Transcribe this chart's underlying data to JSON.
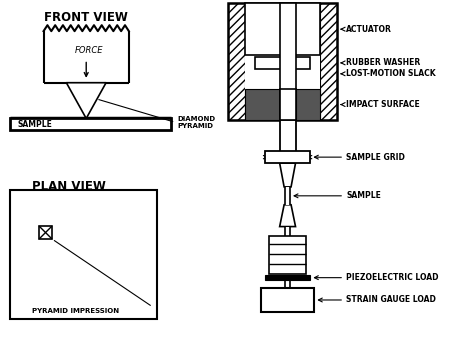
{
  "bg_color": "#ffffff",
  "line_color": "#000000",
  "labels": {
    "front_view": "FRONT VIEW",
    "plan_view": "PLAN VIEW",
    "force": "FORCE",
    "diamond_pyramid": "DIAMOND\nPYRAMID",
    "sample_left": "SAMPLE",
    "actuator": "ACTUATOR",
    "rubber_washer": "RUBBER WASHER",
    "lost_motion": "LOST-MOTION SLACK",
    "impact_surface": "IMPACT SURFACE",
    "sample_grid": "SAMPLE GRID",
    "sample_right": "SAMPLE",
    "piezoelectric": "PIEZOELECTRIC LOAD",
    "strain_gauge": "STRAIN GAUGE LOAD",
    "pyramid_impression": "PYRAMID IMPRESSION"
  }
}
